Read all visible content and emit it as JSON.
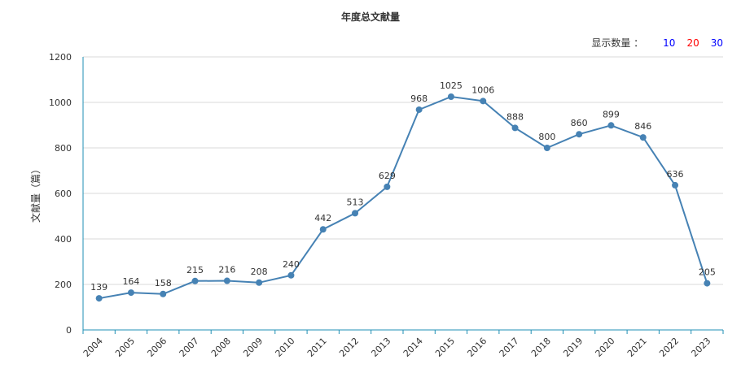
{
  "chart_data": {
    "type": "line",
    "title": "年度总文献量",
    "xlabel": "",
    "ylabel": "文献量（篇）",
    "ylim": [
      0,
      1200
    ],
    "yticks": [
      0,
      200,
      400,
      600,
      800,
      1000,
      1200
    ],
    "grid": true,
    "x": [
      "2004",
      "2005",
      "2006",
      "2007",
      "2008",
      "2009",
      "2010",
      "2011",
      "2012",
      "2013",
      "2014",
      "2015",
      "2016",
      "2017",
      "2018",
      "2019",
      "2020",
      "2021",
      "2022",
      "2023"
    ],
    "series": [
      {
        "values": [
          139,
          164,
          158,
          215,
          216,
          208,
          240,
          442,
          513,
          629,
          968,
          1025,
          1006,
          888,
          800,
          860,
          899,
          846,
          636,
          205
        ]
      }
    ]
  },
  "display_count": {
    "label": "显示数量 ：",
    "options": [
      {
        "text": "10",
        "color": "#0000ff"
      },
      {
        "text": "20",
        "color": "#ff0000"
      },
      {
        "text": "30",
        "color": "#0000ff"
      }
    ]
  },
  "colors": {
    "line": "#4682b4",
    "axis": "#1f8fb4",
    "grid": "#d9d9d9"
  }
}
